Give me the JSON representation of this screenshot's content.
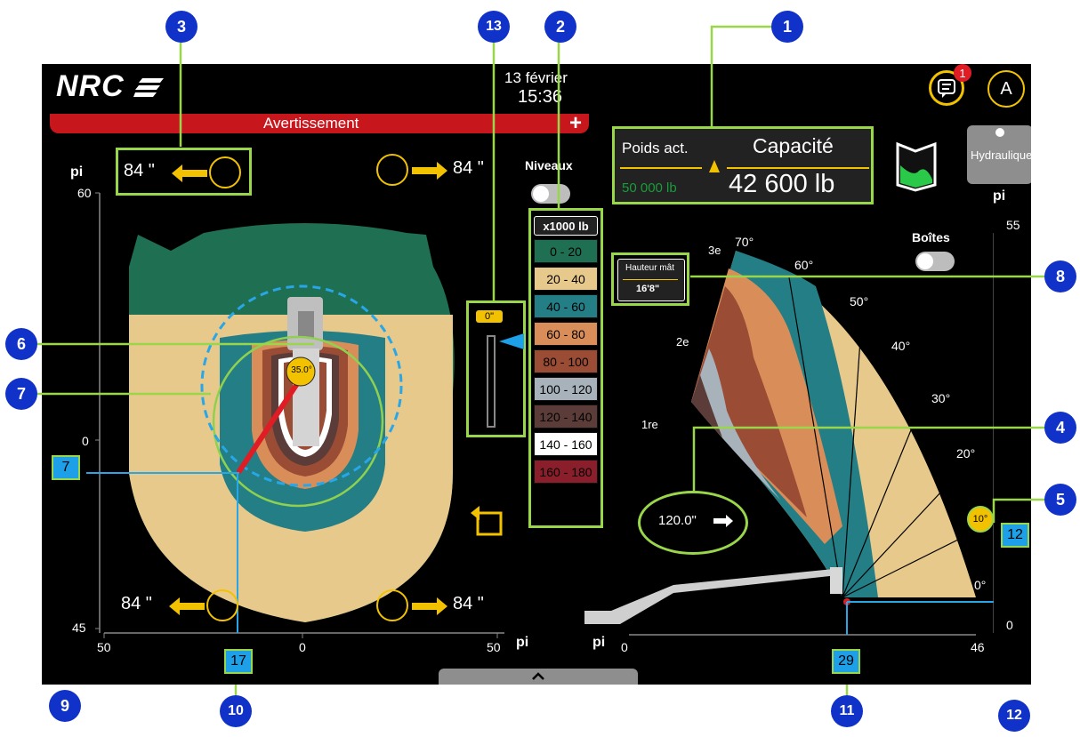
{
  "header": {
    "logo_text": "NRC",
    "date": "13 février",
    "time": "15:36",
    "notification_count": "1",
    "user_initial": "A"
  },
  "warning_bar": {
    "label": "Avertissement",
    "plus": "+"
  },
  "weight_panel": {
    "actual_label": "Poids act.",
    "actual_value": "50 000 lb",
    "capacity_label": "Capacité",
    "capacity_value": "42 600 lb"
  },
  "hydraulic_label": "Hydraulique",
  "levels": {
    "label": "Niveaux",
    "indicator_value": "0\""
  },
  "boxes_label": "Boîtes",
  "legend": {
    "unit": "x1000 lb",
    "items": [
      {
        "label": "0 - 20",
        "color": "#1f6f53"
      },
      {
        "label": "20 - 40",
        "color": "#e8c98c"
      },
      {
        "label": "40 - 60",
        "color": "#247e86"
      },
      {
        "label": "60 - 80",
        "color": "#d98e5a"
      },
      {
        "label": "80 - 100",
        "color": "#9a4c34"
      },
      {
        "label": "100 - 120",
        "color": "#a7b2bb"
      },
      {
        "label": "120 - 140",
        "color": "#5b3c38"
      },
      {
        "label": "140 - 160",
        "color": "#ffffff"
      },
      {
        "label": "160 - 180",
        "color": "#8a1e2a"
      }
    ]
  },
  "outriggers": {
    "top_left": "84 \"",
    "top_right": "84 \"",
    "bottom_left": "84 \"",
    "bottom_right": "84 \""
  },
  "top_view": {
    "unit": "pi",
    "y_ticks": [
      "60",
      "0",
      "45"
    ],
    "x_ticks": [
      "50",
      "0",
      "50"
    ],
    "rotation_badge": "35.0°",
    "left_marker": "7",
    "bottom_marker": "17"
  },
  "side_view": {
    "unit": "pi",
    "y_ticks": [
      "55",
      "0"
    ],
    "x_ticks": [
      "0",
      "46"
    ],
    "mast_height_label": "Hauteur mât",
    "mast_height_value": "16'8\"",
    "angle_labels": [
      "70°",
      "60°",
      "50°",
      "40°",
      "30°",
      "20°",
      "10°",
      "0°"
    ],
    "section_labels": [
      "3e",
      "2e",
      "1re"
    ],
    "boom_extension": "120.0\"",
    "angle_badge": "10°",
    "right_marker": "12",
    "bottom_marker": "29"
  },
  "callouts": [
    "1",
    "2",
    "3",
    "4",
    "5",
    "6",
    "7",
    "8",
    "9",
    "10",
    "11",
    "12",
    "13"
  ],
  "accent_colors": {
    "green_frame": "#9ad64a",
    "callout_blue": "#1032c8",
    "marker_blue": "#1ea0e8",
    "warning_red": "#c8161d",
    "yellow": "#f2c200"
  }
}
